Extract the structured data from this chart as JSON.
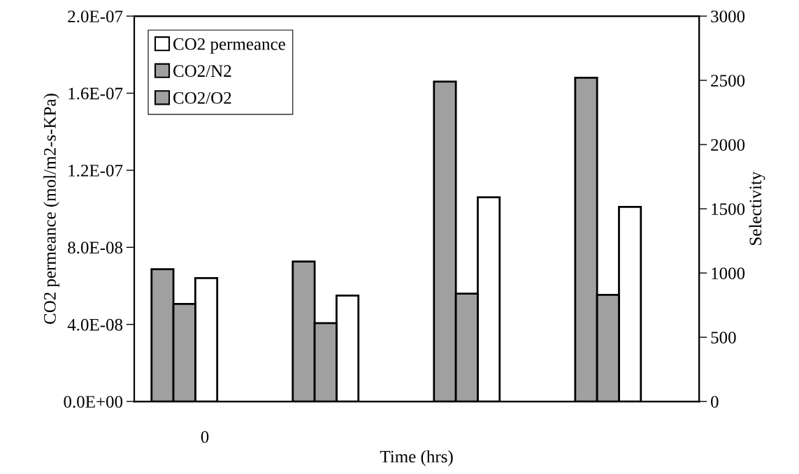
{
  "chart_data": {
    "type": "bar",
    "xlabel": "Time (hrs)",
    "ylabel": "CO2 permeance (mol/m2-s-KPa)",
    "y2label": "Selectivity",
    "categories": [
      "0",
      null,
      null,
      null
    ],
    "series": [
      {
        "name": "CO2 permeance",
        "color": "#ffffff",
        "values": [
          6.4e-08,
          5.5e-08,
          1.06e-07,
          1.01e-07
        ]
      },
      {
        "name": "CO2/N2",
        "color": "#a0a0a0",
        "axis": "y2",
        "values": [
          1030,
          1090,
          2490,
          2520
        ]
      },
      {
        "name": "CO2/O2",
        "color": "#a0a0a0",
        "axis": "y2",
        "values": [
          760,
          610,
          840,
          830
        ]
      }
    ],
    "ylim": [
      0,
      2e-07
    ],
    "yticks": [
      {
        "value": 0,
        "label": "0.0E+00"
      },
      {
        "value": 4e-08,
        "label": "4.0E-08"
      },
      {
        "value": 8e-08,
        "label": "8.0E-08"
      },
      {
        "value": 1.2e-07,
        "label": "1.2E-07"
      },
      {
        "value": 1.6e-07,
        "label": "1.6E-07"
      },
      {
        "value": 2e-07,
        "label": "2.0E-07"
      }
    ],
    "y2lim": [
      0,
      3000
    ],
    "y2ticks": [
      0,
      500,
      1000,
      1500,
      2000,
      2500,
      3000
    ],
    "legend": "top left",
    "grid": false
  }
}
